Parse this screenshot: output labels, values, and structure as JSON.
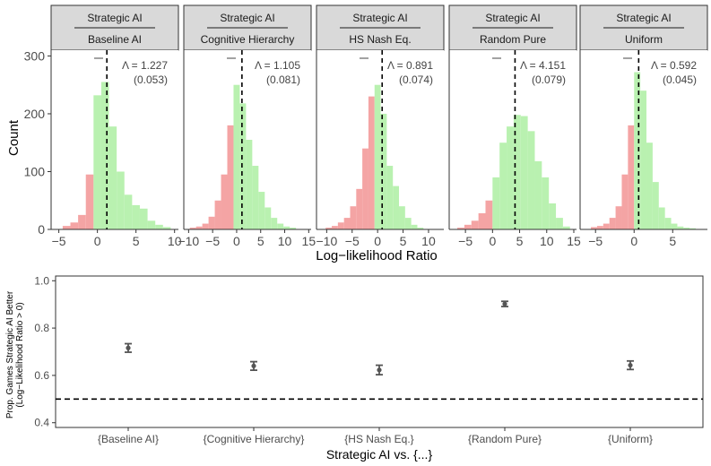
{
  "chart_data": [
    {
      "type": "bar",
      "shared_ylabel": "Count",
      "shared_xlabel": "Log−likelihood Ratio",
      "ylim": [
        0,
        310
      ],
      "y_ticks": [
        0,
        100,
        200,
        300
      ],
      "colors": {
        "negative": "#f4a4a4",
        "positive": "#b9f1b0"
      },
      "facets": [
        {
          "strip_top": "Strategic AI",
          "strip_bottom": "Baseline AI",
          "lambda_value": "= 1.227",
          "lambda_se": "(0.053)",
          "mean": 1.227,
          "xlim": [
            -6,
            10.5
          ],
          "x_ticks": [
            -5,
            0,
            5,
            10
          ],
          "bin_width": 1,
          "bin_left_edges": [
            -4.5,
            -3.5,
            -2.5,
            -1.5,
            -0.5,
            0.5,
            1.5,
            2.5,
            3.5,
            4.5,
            5.5,
            6.5,
            7.5,
            8.5
          ],
          "counts": [
            6,
            12,
            25,
            95,
            232,
            255,
            178,
            100,
            60,
            42,
            36,
            15,
            8,
            4
          ]
        },
        {
          "strip_top": "Strategic AI",
          "strip_bottom": "Cognitive Hierarchy",
          "lambda_value": "= 1.105",
          "lambda_se": "(0.081)",
          "mean": 1.105,
          "xlim": [
            -11,
            15.5
          ],
          "x_ticks": [
            -10,
            -5,
            0,
            5,
            10,
            15
          ],
          "bin_width": 1.3,
          "bin_left_edges": [
            -9.75,
            -8.45,
            -7.15,
            -5.85,
            -4.55,
            -3.25,
            -1.95,
            -0.65,
            0.65,
            1.95,
            3.25,
            4.55,
            5.85,
            7.15,
            8.45,
            9.75,
            11.05
          ],
          "counts": [
            3,
            5,
            10,
            22,
            50,
            95,
            180,
            250,
            218,
            155,
            110,
            65,
            38,
            20,
            10,
            5,
            3
          ]
        },
        {
          "strip_top": "Strategic AI",
          "strip_bottom": "HS Nash Eq.",
          "lambda_value": "= 0.891",
          "lambda_se": "(0.074)",
          "mean": 0.891,
          "xlim": [
            -12,
            13
          ],
          "x_ticks": [
            -10,
            -5,
            0,
            5,
            10
          ],
          "bin_width": 1.2,
          "bin_left_edges": [
            -10.2,
            -9.0,
            -7.8,
            -6.6,
            -5.4,
            -4.2,
            -3.0,
            -1.8,
            -0.6,
            0.6,
            1.8,
            3.0,
            4.2,
            5.4,
            6.6,
            7.8
          ],
          "counts": [
            3,
            6,
            12,
            20,
            40,
            70,
            140,
            230,
            250,
            200,
            110,
            75,
            40,
            20,
            8,
            3
          ]
        },
        {
          "strip_top": "Strategic AI",
          "strip_bottom": "Random Pure",
          "lambda_value": "= 4.151",
          "lambda_se": "(0.079)",
          "mean": 4.151,
          "xlim": [
            -8,
            15.5
          ],
          "x_ticks": [
            -5,
            0,
            5,
            10,
            15
          ],
          "bin_width": 1.3,
          "bin_left_edges": [
            -6.5,
            -5.2,
            -3.9,
            -2.6,
            -1.3,
            0.0,
            1.3,
            2.6,
            3.9,
            5.2,
            6.5,
            7.8,
            9.1,
            10.4,
            11.7,
            13.0
          ],
          "counts": [
            3,
            8,
            15,
            28,
            50,
            90,
            150,
            178,
            198,
            196,
            170,
            118,
            90,
            45,
            20,
            5
          ]
        },
        {
          "strip_top": "Strategic AI",
          "strip_bottom": "Uniform",
          "lambda_value": "= 0.592",
          "lambda_se": "(0.045)",
          "mean": 0.592,
          "xlim": [
            -7,
            9.5
          ],
          "x_ticks": [
            -5,
            0,
            5
          ],
          "bin_width": 0.8,
          "bin_left_edges": [
            -5.6,
            -4.8,
            -4.0,
            -3.2,
            -2.4,
            -1.6,
            -0.8,
            0.0,
            0.8,
            1.6,
            2.4,
            3.2,
            4.0,
            4.8,
            5.6,
            6.4,
            7.2
          ],
          "counts": [
            4,
            6,
            10,
            20,
            40,
            95,
            180,
            272,
            240,
            150,
            82,
            38,
            20,
            10,
            5,
            3,
            2
          ]
        }
      ]
    },
    {
      "type": "scatter",
      "xlabel": "Strategic AI vs. {...}",
      "ylabel_line1": "Prop. Games Strategic AI Better",
      "ylabel_line2": "(Log−Likelihood Ratio > 0)",
      "ylim": [
        0.38,
        1.02
      ],
      "y_ticks": [
        0.4,
        0.6,
        0.8,
        1.0
      ],
      "y_tick_labels": [
        "0.4",
        "0.6",
        "0.8",
        "1.0"
      ],
      "reference_line": 0.5,
      "categories": [
        "{Baseline AI}",
        "{Cognitive Hierarchy}",
        "{HS Nash Eq.}",
        "{Random Pure}",
        "{Uniform}"
      ],
      "values": [
        0.716,
        0.64,
        0.623,
        0.902,
        0.643
      ],
      "lower": [
        0.698,
        0.622,
        0.603,
        0.891,
        0.625
      ],
      "upper": [
        0.734,
        0.658,
        0.643,
        0.913,
        0.661
      ]
    }
  ]
}
